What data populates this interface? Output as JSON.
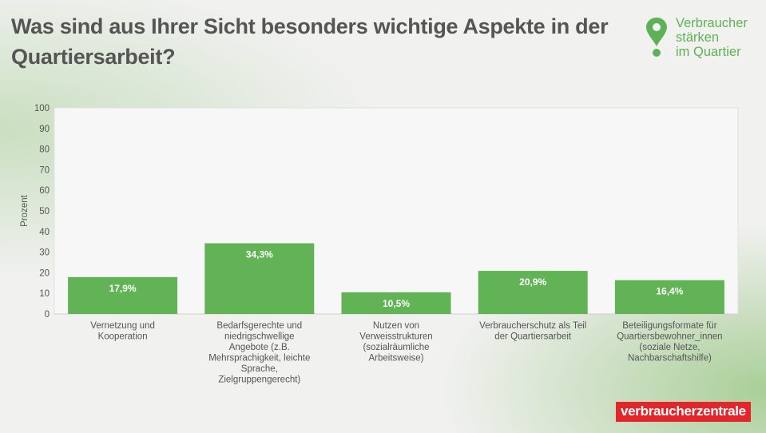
{
  "chart_data": {
    "type": "bar",
    "title": "Was sind aus Ihrer Sicht besonders wichtige Aspekte in der Quartiersarbeit?",
    "ylabel": "Prozent",
    "xlabel": "",
    "ylim": [
      0,
      100
    ],
    "yticks": [
      0,
      10,
      20,
      30,
      40,
      50,
      60,
      70,
      80,
      90,
      100
    ],
    "grid": false,
    "categories": [
      [
        "Vernetzung und",
        "Kooperation"
      ],
      [
        "Bedarfsgerechte und",
        "niedrigschwellige",
        "Angebote (z.B.",
        "Mehrsprachigkeit, leichte",
        "Sprache,",
        "Zielgruppengerecht)"
      ],
      [
        "Nutzen von",
        "Verweisstrukturen",
        "(sozialräumliche",
        "Arbeitsweise)"
      ],
      [
        "Verbraucherschutz als Teil",
        "der Quartiersarbeit"
      ],
      [
        "Beteiligungsformate für",
        "Quartiersbewohner_innen",
        "(soziale Netze,",
        "Nachbarschaftshilfe)"
      ]
    ],
    "values": [
      17.9,
      34.3,
      10.5,
      20.9,
      16.4
    ],
    "data_labels": [
      "17,9%",
      "34,3%",
      "10,5%",
      "20,9%",
      "16,4%"
    ],
    "bar_color": "#62b355"
  },
  "logo": {
    "lines": [
      "Verbraucher",
      "stärken",
      "im Quartier"
    ],
    "icon": "map-pin-icon",
    "color": "#5fb157"
  },
  "brand": {
    "text": "verbraucherzentrale",
    "color": "#e3262b"
  }
}
